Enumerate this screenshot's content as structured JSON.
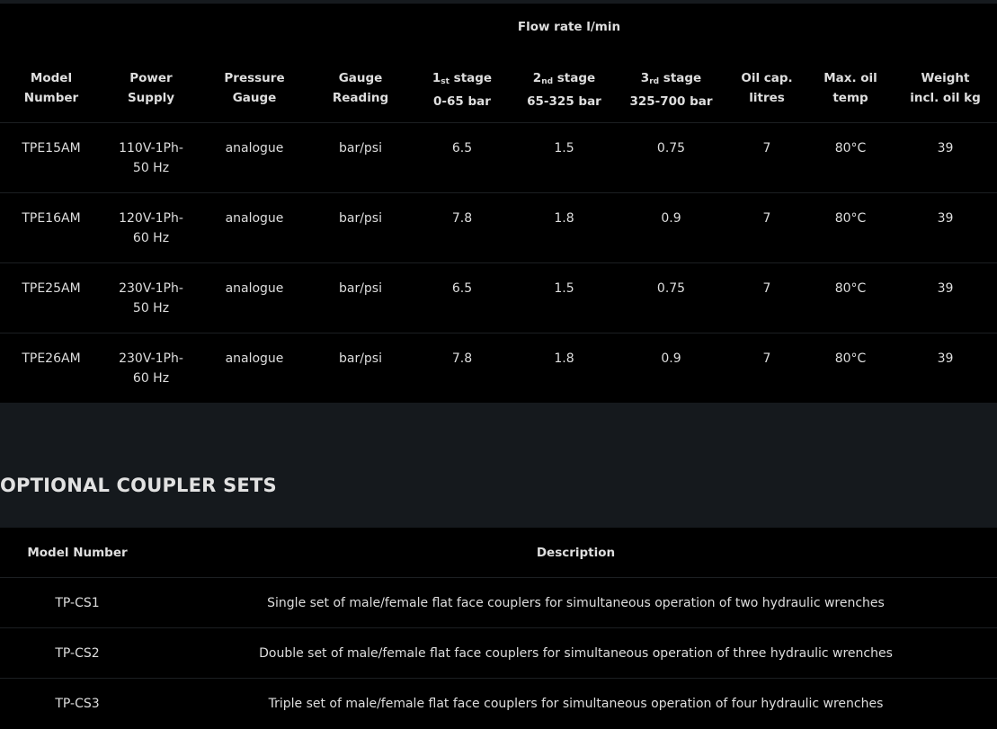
{
  "specs_table": {
    "group_header": "Flow rate l/min",
    "headers": [
      {
        "line1": "Model",
        "line2": "Number"
      },
      {
        "line1": "Power",
        "line2": "Supply"
      },
      {
        "line1": "Pressure",
        "line2": "Gauge"
      },
      {
        "line1": "Gauge",
        "line2": "Reading"
      },
      {
        "num": "1",
        "sup": "st",
        "line1": "stage",
        "line2": "0-65 bar"
      },
      {
        "num": "2",
        "sup": "nd",
        "line1": "stage",
        "line2": "65-325 bar"
      },
      {
        "num": "3",
        "sup": "rd",
        "line1": "stage",
        "line2": "325-700 bar"
      },
      {
        "line1": "Oil cap.",
        "line2": "litres"
      },
      {
        "line1": "Max. oil",
        "line2": "temp"
      },
      {
        "line1": "Weight",
        "line2": "incl. oil kg"
      }
    ],
    "rows": [
      {
        "model": "TPE15AM",
        "power1": "110V-1Ph-",
        "power2": "50 Hz",
        "gauge": "analogue",
        "reading": "bar/psi",
        "s1": "6.5",
        "s2": "1.5",
        "s3": "0.75",
        "oil": "7",
        "temp": "80°C",
        "weight": "39"
      },
      {
        "model": "TPE16AM",
        "power1": "120V-1Ph-",
        "power2": "60 Hz",
        "gauge": "analogue",
        "reading": "bar/psi",
        "s1": "7.8",
        "s2": "1.8",
        "s3": "0.9",
        "oil": "7",
        "temp": "80°C",
        "weight": "39"
      },
      {
        "model": "TPE25AM",
        "power1": "230V-1Ph-",
        "power2": "50 Hz",
        "gauge": "analogue",
        "reading": "bar/psi",
        "s1": "6.5",
        "s2": "1.5",
        "s3": "0.75",
        "oil": "7",
        "temp": "80°C",
        "weight": "39"
      },
      {
        "model": "TPE26AM",
        "power1": "230V-1Ph-",
        "power2": "60 Hz",
        "gauge": "analogue",
        "reading": "bar/psi",
        "s1": "7.8",
        "s2": "1.8",
        "s3": "0.9",
        "oil": "7",
        "temp": "80°C",
        "weight": "39"
      }
    ]
  },
  "section_title": "OPTIONAL COUPLER SETS",
  "coupler_table": {
    "headers": [
      "Model Number",
      "Description"
    ],
    "rows": [
      {
        "model": "TP-CS1",
        "description": "Single set of male/female flat face couplers for simultaneous operation of two hydraulic wrenches"
      },
      {
        "model": "TP-CS2",
        "description": "Double set of male/female flat face couplers for simultaneous operation of three hydraulic wrenches"
      },
      {
        "model": "TP-CS3",
        "description": "Triple set of male/female flat face couplers for simultaneous operation of four hydraulic wrenches"
      }
    ]
  },
  "colors": {
    "background": "#000000",
    "section_background": "#15191d",
    "text": "#dedede"
  }
}
